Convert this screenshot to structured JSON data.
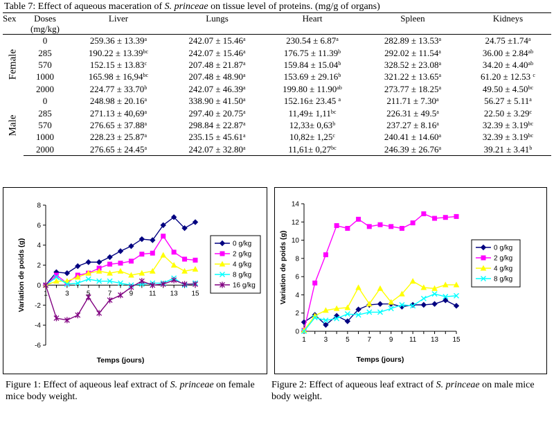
{
  "table": {
    "title_prefix": "Table 7: Effect of aqueous maceration of ",
    "title_species": "S. princeae",
    "title_suffix": " on tissue level of proteins. (mg/g of organs)",
    "headers": {
      "sex": "Sex",
      "doses_line1": "Doses",
      "doses_line2": "(mg/kg)",
      "liver": "Liver",
      "lungs": "Lungs",
      "heart": "Heart",
      "spleen": "Spleen",
      "kidneys": "Kidneys"
    },
    "groups": [
      {
        "sex": "Female",
        "rows": [
          {
            "dose": "0",
            "liver": [
              "259.36 ± 13.39",
              "a"
            ],
            "lungs": [
              "242.07 ± 15.46",
              "a"
            ],
            "heart": [
              "230.54 ± 6.87",
              "a"
            ],
            "spleen": [
              "282.89 ± 13.53",
              "a"
            ],
            "kidneys": [
              "24.75 ±1.74",
              "a"
            ]
          },
          {
            "dose": "285",
            "liver": [
              "190.22 ± 13.39",
              "bc"
            ],
            "lungs": [
              "242.07 ± 15.46",
              "a"
            ],
            "heart": [
              "176.75 ± 11.39",
              "b"
            ],
            "spleen": [
              "292.02 ± 11.54",
              "a"
            ],
            "kidneys": [
              "36.00 ± 2.84",
              "ab"
            ]
          },
          {
            "dose": "570",
            "liver": [
              "152.15 ± 13.83",
              "c"
            ],
            "lungs": [
              "207.48 ± 21.87",
              "a"
            ],
            "heart": [
              "159.84 ± 15.04",
              "b"
            ],
            "spleen": [
              "328.52 ± 23.08",
              "a"
            ],
            "kidneys": [
              "34.20 ± 4.40",
              "ab"
            ]
          },
          {
            "dose": "1000",
            "liver": [
              "165.98 ± 16,94",
              "bc"
            ],
            "lungs": [
              "207.48 ±  48.90",
              "a"
            ],
            "heart": [
              "153.69 ± 29.16",
              "b"
            ],
            "spleen": [
              "321.22 ± 13.65",
              "a"
            ],
            "kidneys": [
              "61.20 ± 12.53 ",
              "c"
            ]
          },
          {
            "dose": "2000",
            "liver": [
              "224.77 ± 33.70",
              "b"
            ],
            "lungs": [
              "242.07 ± 46.39",
              "a"
            ],
            "heart": [
              "199.80 ± 11.90",
              "ab"
            ],
            "spleen": [
              "273.77 ± 18.25",
              "a"
            ],
            "kidneys": [
              "49.50 ± 4.50",
              "bc"
            ]
          }
        ]
      },
      {
        "sex": "Male",
        "rows": [
          {
            "dose": "0",
            "liver": [
              "248.98 ± 20.16",
              "a"
            ],
            "lungs": [
              "338.90 ± 41.50",
              "a"
            ],
            "heart": [
              "152.16± 23.45 ",
              "a"
            ],
            "spleen": [
              "211.71 ± 7.30",
              "a"
            ],
            "kidneys": [
              "56.27 ± 5.11",
              "a"
            ]
          },
          {
            "dose": "285",
            "liver": [
              "271.13 ± 40,69",
              "a"
            ],
            "lungs": [
              "297.40 ± 20.75",
              "a"
            ],
            "heart": [
              "11,49± 1,11",
              "bc"
            ],
            "spleen": [
              "226.31 ± 49.5",
              "a"
            ],
            "kidneys": [
              "22.50 ± 3.29",
              "c"
            ]
          },
          {
            "dose": "570",
            "liver": [
              "276.65 ± 37.88",
              "a"
            ],
            "lungs": [
              "298.84 ± 22.87",
              "a"
            ],
            "heart": [
              "12,33± 0,63",
              "b"
            ],
            "spleen": [
              "237.27 ± 8.16",
              "a"
            ],
            "kidneys": [
              "32.39 ± 3.19",
              "bc"
            ]
          },
          {
            "dose": "1000",
            "liver": [
              "228.23 ± 25.87",
              "a"
            ],
            "lungs": [
              "235.15 ± 45.61",
              "a"
            ],
            "heart": [
              "10,82± 1,25",
              "c"
            ],
            "spleen": [
              "240.41 ± 14.60",
              "a"
            ],
            "kidneys": [
              "32.39 ± 3.19",
              "bc"
            ]
          },
          {
            "dose": "2000",
            "liver": [
              "276.65 ± 24.45",
              "a"
            ],
            "lungs": [
              "242.07 ± 32.80",
              "a"
            ],
            "heart": [
              "11,61± 0,27",
              "bc"
            ],
            "spleen": [
              "246.39 ± 26.76",
              "a"
            ],
            "kidneys": [
              "39.21 ± 3.41",
              "b"
            ]
          }
        ]
      }
    ]
  },
  "figure1": {
    "caption_prefix": "Figure 1: Effect of aqueous leaf extract of ",
    "caption_species": "S. princeae",
    "caption_suffix": " on female mice body weight."
  },
  "figure2": {
    "caption_prefix": "Figure 2: Effect of aqueous leaf extract of ",
    "caption_species": "S. princeae",
    "caption_suffix": " on male mice body weight."
  },
  "chart_data": [
    {
      "type": "line",
      "xlabel": "Temps (jours)",
      "ylabel": "Variation de poids (g)",
      "xlim": [
        1,
        15
      ],
      "ylim": [
        -6,
        8
      ],
      "yticks": [
        -6,
        -4,
        -2,
        0,
        2,
        4,
        6,
        8
      ],
      "xticks": [
        1,
        3,
        5,
        7,
        9,
        11,
        13,
        15
      ],
      "x": [
        1,
        2,
        3,
        4,
        5,
        6,
        7,
        8,
        9,
        10,
        11,
        12,
        13,
        14,
        15
      ],
      "legend_position": "right",
      "series": [
        {
          "name": "0 g/kg",
          "color": "#000080",
          "marker": "diamond",
          "values": [
            0,
            1.3,
            1.2,
            1.9,
            2.3,
            2.3,
            2.8,
            3.4,
            3.9,
            4.6,
            4.5,
            6.0,
            6.8,
            5.7,
            6.3
          ]
        },
        {
          "name": "2 g/kg",
          "color": "#ff00ff",
          "marker": "square",
          "values": [
            0,
            1.0,
            0.2,
            1.0,
            1.2,
            1.7,
            2.1,
            2.2,
            2.4,
            3.1,
            3.2,
            4.9,
            3.3,
            2.6,
            2.5
          ]
        },
        {
          "name": "4 g/kg",
          "color": "#ffff00",
          "marker": "triangle",
          "values": [
            0,
            0.4,
            0.4,
            0.8,
            1.2,
            1.4,
            1.2,
            1.4,
            1.0,
            1.2,
            1.4,
            3.0,
            2.0,
            1.4,
            1.6
          ]
        },
        {
          "name": "8 g/kg",
          "color": "#00ffff",
          "marker": "x",
          "values": [
            0,
            0.8,
            0.1,
            0.2,
            0.6,
            0.4,
            0.4,
            0.2,
            0.0,
            0.1,
            0.2,
            0.2,
            0.7,
            0.0,
            0.2
          ]
        },
        {
          "name": "16 g/kg",
          "color": "#800080",
          "marker": "star",
          "values": [
            0,
            -3.3,
            -3.5,
            -3.0,
            -1.2,
            -2.8,
            -1.5,
            -1.0,
            -0.2,
            0.4,
            0.0,
            0.1,
            0.5,
            0.1,
            0.1
          ]
        }
      ]
    },
    {
      "type": "line",
      "xlabel": "Temps (jours)",
      "ylabel": "Variation de poids (g)",
      "xlim": [
        1,
        15
      ],
      "ylim": [
        0,
        14
      ],
      "yticks": [
        0,
        2,
        4,
        6,
        8,
        10,
        12,
        14
      ],
      "xticks": [
        1,
        3,
        5,
        7,
        9,
        11,
        13,
        15
      ],
      "x": [
        1,
        2,
        3,
        4,
        5,
        6,
        7,
        8,
        9,
        10,
        11,
        12,
        13,
        14,
        15
      ],
      "legend_position": "right",
      "series": [
        {
          "name": "0 g/kg",
          "color": "#000080",
          "marker": "diamond",
          "values": [
            1.0,
            1.8,
            0.7,
            1.7,
            1.1,
            2.4,
            2.9,
            3.0,
            3.0,
            2.7,
            2.9,
            2.9,
            3.0,
            3.4,
            2.8
          ]
        },
        {
          "name": "2 g/kg",
          "color": "#ff00ff",
          "marker": "square",
          "values": [
            0.1,
            5.3,
            8.4,
            11.6,
            11.3,
            12.3,
            11.5,
            11.7,
            11.5,
            11.3,
            11.9,
            12.9,
            12.4,
            12.5,
            12.6
          ]
        },
        {
          "name": "4 g/kg",
          "color": "#ffff00",
          "marker": "triangle",
          "values": [
            0.1,
            1.7,
            2.3,
            2.5,
            2.6,
            4.8,
            3.0,
            4.7,
            3.2,
            4.1,
            5.5,
            4.8,
            4.7,
            5.1,
            5.1
          ]
        },
        {
          "name": "8 g/kg",
          "color": "#00ffff",
          "marker": "x",
          "values": [
            0.0,
            1.5,
            1.2,
            1.4,
            1.9,
            1.8,
            2.1,
            2.1,
            2.5,
            2.9,
            2.8,
            3.6,
            4.1,
            3.8,
            3.9
          ]
        }
      ]
    }
  ]
}
